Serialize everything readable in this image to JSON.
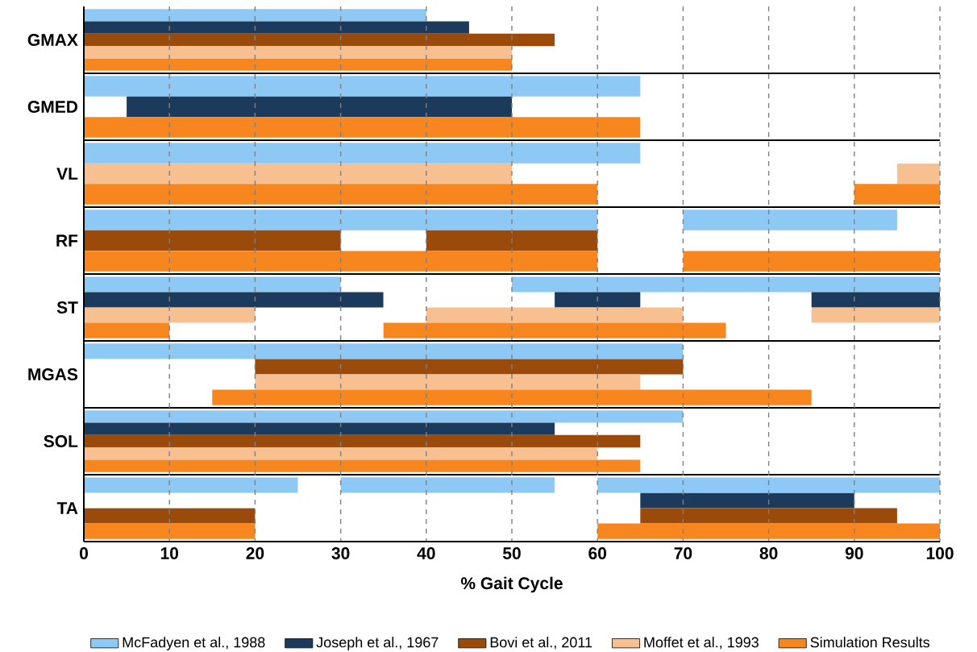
{
  "chart_data": {
    "type": "bar",
    "orientation": "horizontal",
    "xlabel": "% Gait Cycle",
    "categories": [
      "GMAX",
      "GMED",
      "VL",
      "RF",
      "ST",
      "MGAS",
      "SOL",
      "TA"
    ],
    "xlim": [
      0,
      100
    ],
    "xticks": [
      0,
      10,
      20,
      30,
      40,
      50,
      60,
      70,
      80,
      90,
      100
    ],
    "grid": "x",
    "legend": "bottom",
    "series": [
      {
        "name": "McFadyen et al., 1988",
        "color": "#8ec9f5",
        "base": [
          0,
          0,
          0,
          0,
          0,
          0,
          0,
          0
        ],
        "values": [
          40,
          65,
          65,
          60,
          30,
          70,
          70,
          25
        ]
      },
      {
        "name": "Joseph et al., 1967",
        "color": "#1b3a5c",
        "base": [
          0,
          5,
          null,
          null,
          0,
          null,
          0,
          65
        ],
        "values": [
          45,
          45,
          null,
          null,
          35,
          null,
          55,
          25
        ]
      },
      {
        "name": "Bovi et al., 2011",
        "color": "#9a4a0b",
        "base": [
          0,
          null,
          null,
          0,
          null,
          20,
          0,
          0
        ],
        "values": [
          55,
          null,
          null,
          30,
          null,
          50,
          65,
          20
        ]
      },
      {
        "name": "Moffet et al., 1993",
        "color": "#f8c090",
        "base": [
          0,
          null,
          0,
          null,
          0,
          20,
          0,
          null
        ],
        "values": [
          50,
          null,
          50,
          null,
          20,
          45,
          60,
          null
        ]
      },
      {
        "name": "Simulation Results",
        "color": "#f7861f",
        "base": [
          0,
          0,
          0,
          0,
          0,
          15,
          0,
          0
        ],
        "values": [
          50,
          65,
          60,
          60,
          10,
          70,
          65,
          20
        ]
      },
      {
        "color": "#8ec9f5",
        "base": [
          null,
          null,
          null,
          70,
          50,
          null,
          null,
          30
        ],
        "values": [
          null,
          null,
          null,
          25,
          50,
          null,
          null,
          25
        ]
      },
      {
        "color": "#1b3a5c",
        "base": [
          null,
          null,
          null,
          null,
          55,
          null,
          null,
          null
        ],
        "values": [
          null,
          null,
          null,
          null,
          10,
          null,
          null,
          null
        ]
      },
      {
        "color": "#9a4a0b",
        "base": [
          null,
          null,
          null,
          40,
          null,
          null,
          null,
          65
        ],
        "values": [
          null,
          null,
          null,
          20,
          null,
          null,
          null,
          30
        ]
      },
      {
        "color": "#f8c090",
        "base": [
          null,
          null,
          95,
          null,
          40,
          null,
          null,
          null
        ],
        "values": [
          null,
          null,
          5,
          null,
          30,
          null,
          null,
          null
        ]
      },
      {
        "color": "#f7861f",
        "base": [
          null,
          null,
          90,
          70,
          35,
          null,
          null,
          60
        ],
        "values": [
          null,
          null,
          10,
          30,
          40,
          null,
          null,
          40
        ]
      },
      {
        "color": "#8ec9f5",
        "base": [
          null,
          null,
          null,
          null,
          null,
          null,
          null,
          60
        ],
        "values": [
          null,
          null,
          null,
          null,
          null,
          null,
          null,
          40
        ]
      },
      {
        "color": "#1b3a5c",
        "base": [
          null,
          null,
          null,
          null,
          85,
          null,
          null,
          null
        ],
        "values": [
          null,
          null,
          null,
          null,
          15,
          null,
          null,
          null
        ]
      },
      {
        "color": "#f8c090",
        "base": [
          null,
          null,
          null,
          null,
          85,
          null,
          null,
          null
        ],
        "values": [
          null,
          null,
          null,
          null,
          15,
          null,
          null,
          null
        ]
      }
    ]
  }
}
